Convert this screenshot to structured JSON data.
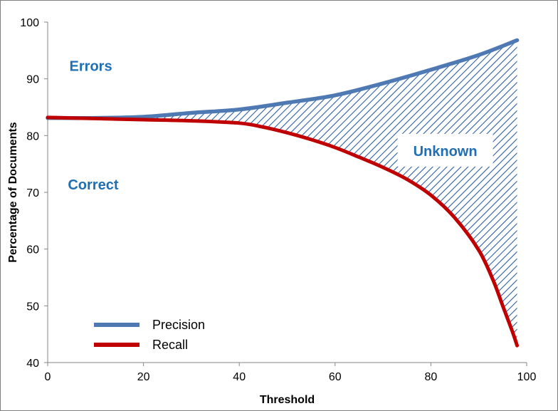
{
  "chart_data": {
    "type": "line",
    "xlabel": "Threshold",
    "ylabel": "Percentage of Documents",
    "xlim": [
      0,
      100
    ],
    "ylim": [
      40,
      100
    ],
    "xticks": [
      0,
      20,
      40,
      60,
      80,
      100
    ],
    "yticks": [
      40,
      50,
      60,
      70,
      80,
      90,
      100
    ],
    "grid": false,
    "legend_position": "bottom-left",
    "series": [
      {
        "name": "Precision",
        "color": "#4f79b3",
        "x": [
          0,
          10,
          20,
          30,
          40,
          50,
          60,
          70,
          80,
          90,
          98
        ],
        "y": [
          83.1,
          83.1,
          83.3,
          84.0,
          84.6,
          85.8,
          87.1,
          89.2,
          91.6,
          94.2,
          96.8
        ]
      },
      {
        "name": "Recall",
        "color": "#c00000",
        "x": [
          0,
          10,
          20,
          30,
          40,
          45,
          50,
          55,
          60,
          65,
          70,
          75,
          80,
          85,
          90,
          93,
          95,
          97,
          98
        ],
        "y": [
          83.2,
          83.0,
          82.8,
          82.6,
          82.2,
          81.5,
          80.5,
          79.3,
          77.9,
          76.2,
          74.4,
          72.3,
          69.5,
          65.5,
          59.8,
          54.5,
          50.0,
          45.5,
          43.0
        ]
      }
    ],
    "annotations": [
      {
        "text": "Errors",
        "x": 9,
        "y": 92.3
      },
      {
        "text": "Correct",
        "x": 9.5,
        "y": 71.4
      },
      {
        "text": "Unknown",
        "x": 83,
        "y": 77.3,
        "boxed": true
      }
    ],
    "shaded_region": {
      "between": [
        "Precision",
        "Recall"
      ],
      "pattern": "diagonal-hatch",
      "color": "#2e5f9e"
    }
  }
}
